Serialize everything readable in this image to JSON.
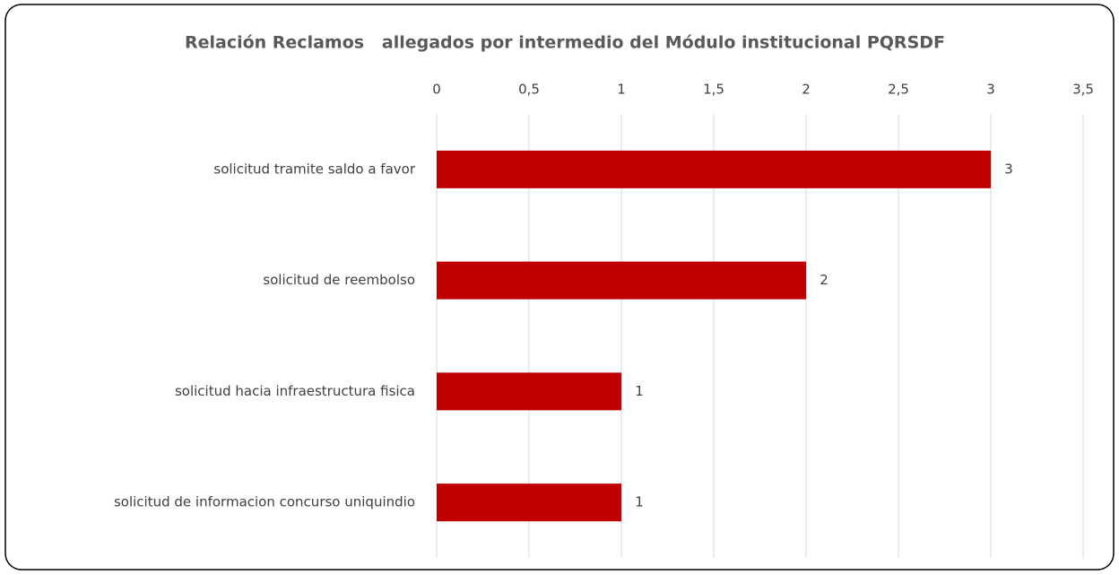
{
  "chart_data": {
    "type": "bar",
    "orientation": "horizontal",
    "title": "Relación Reclamos   allegados por intermedio del Módulo institucional PQRSDF",
    "categories": [
      "solicitud tramite saldo a favor",
      "solicitud de reembolso",
      "solicitud hacia infraestructura fisica",
      "solicitud de informacion concurso uniquindio"
    ],
    "values": [
      3,
      2,
      1,
      1
    ],
    "color": "#c00000",
    "xlim": [
      0,
      3.5
    ],
    "xticks": [
      0,
      {
        "value": 0.5,
        "label": "0,5"
      },
      1,
      {
        "value": 1.5,
        "label": "1,5"
      },
      2,
      {
        "value": 2.5,
        "label": "2,5"
      },
      3,
      {
        "value": 3.5,
        "label": "3,5"
      }
    ],
    "grid": true
  }
}
